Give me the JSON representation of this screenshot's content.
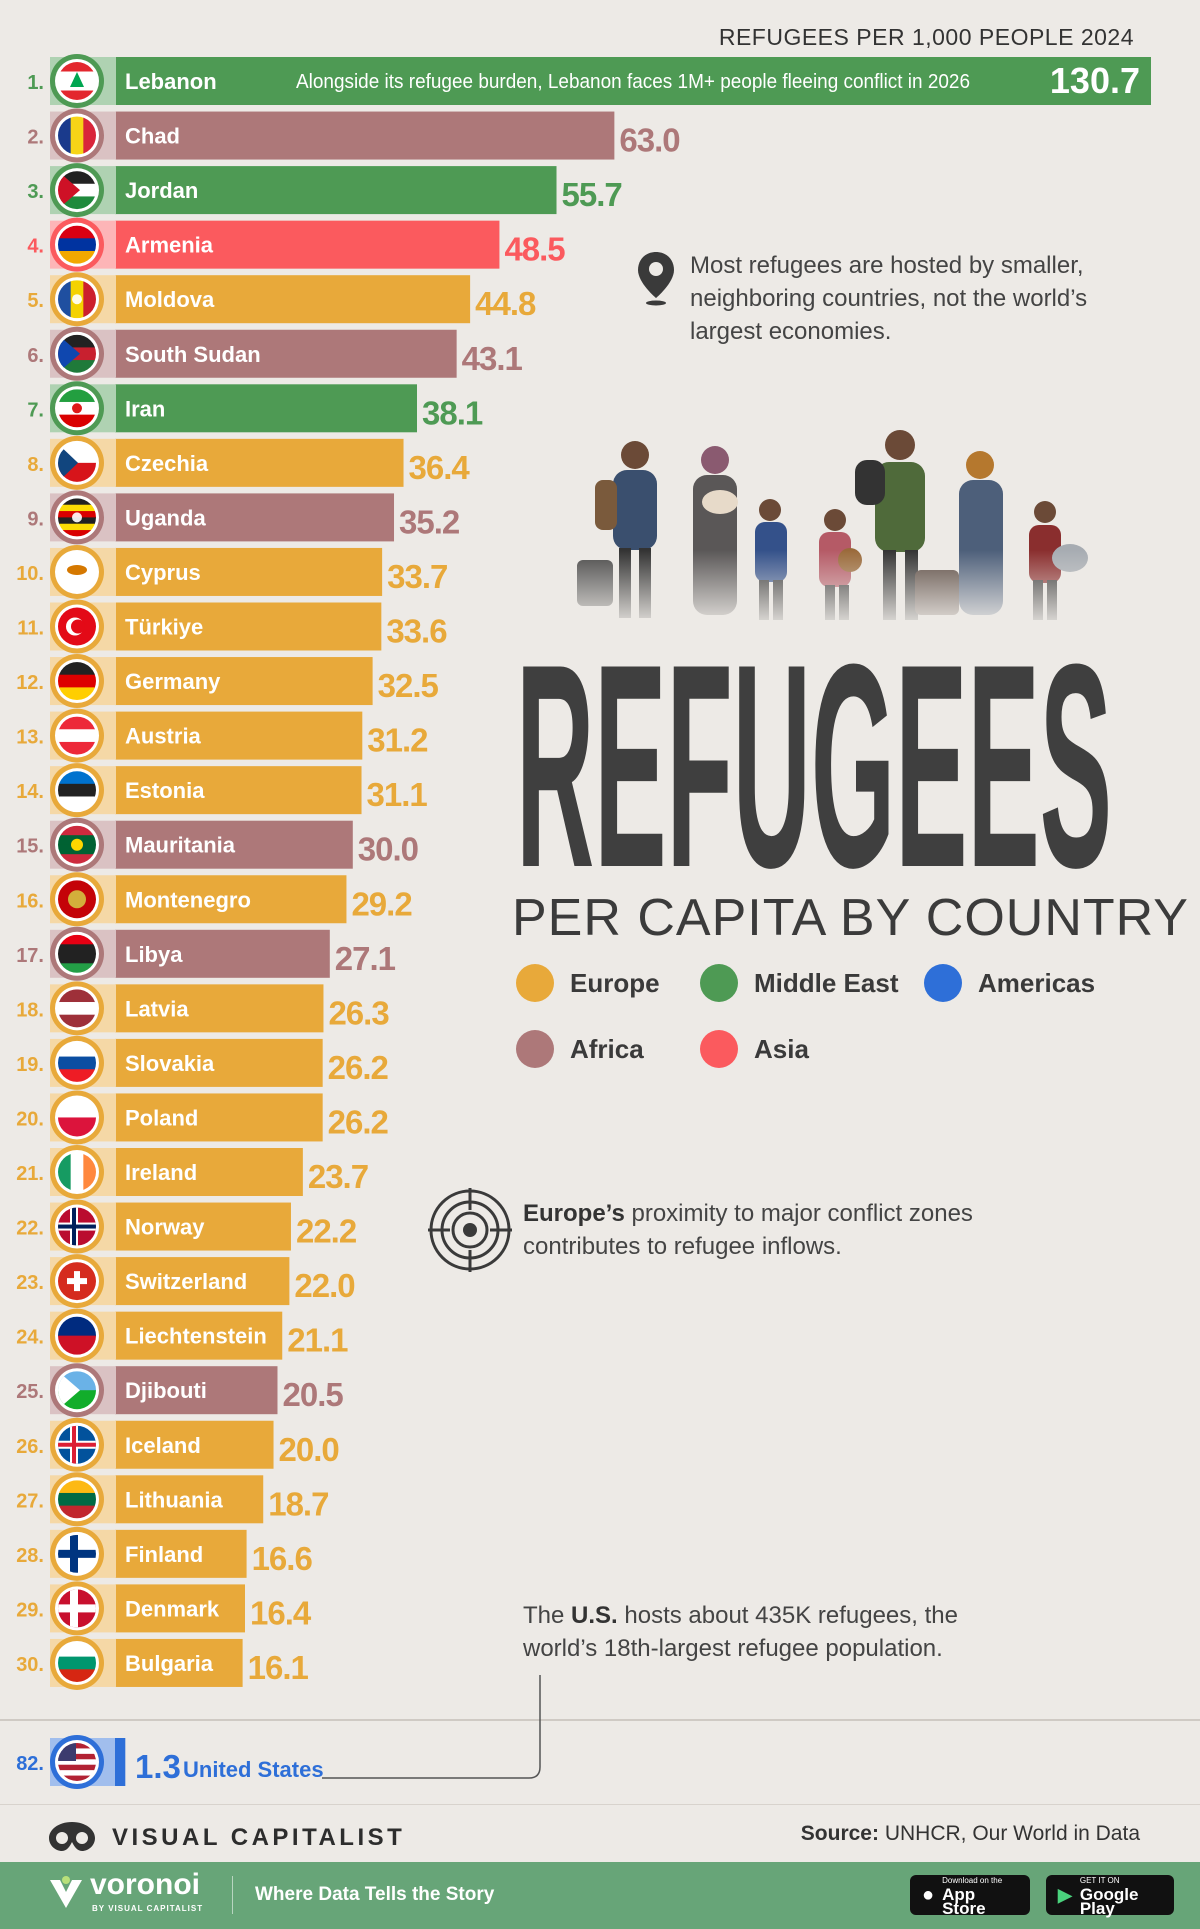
{
  "header_label": "REFUGEES PER 1,000 PEOPLE 2024",
  "colors": {
    "Europe": "#e8a93a",
    "Middle East": "#4e9a54",
    "Americas": "#2e6fd8",
    "Africa": "#ad7879",
    "Asia": "#fb5a5e"
  },
  "lebanon_annotation": "Alongside its refugee burden, Lebanon faces 1M+ people fleeing conflict in 2026",
  "title": "REFUGEES",
  "subtitle": "PER CAPITA BY COUNTRY",
  "legend": [
    {
      "label": "Europe",
      "color": "#e8a93a"
    },
    {
      "label": "Middle East",
      "color": "#4e9a54"
    },
    {
      "label": "Americas",
      "color": "#2e6fd8"
    },
    {
      "label": "Africa",
      "color": "#ad7879"
    },
    {
      "label": "Asia",
      "color": "#fb5a5e"
    }
  ],
  "note_hosted": "Most refugees are hosted by smaller, neighboring countries, not the world’s largest economies.",
  "note_europe_bold": "Europe’s",
  "note_europe_rest": " proximity to major conflict zones contributes to refugee inflows.",
  "note_us_pre": "The ",
  "note_us_bold": "U.S.",
  "note_us_rest": " hosts about 435K refugees, the world’s 18th-largest refugee population.",
  "footer": {
    "brand": "VISUAL CAPITALIST",
    "source_label": "Source:",
    "source_text": "UNHCR, Our World in Data",
    "voronoi": "voronoi",
    "voronoi_sub": "BY VISUAL CAPITALIST",
    "tagline": "Where Data Tells the Story",
    "app_store_small": "Download on the",
    "app_store": "App Store",
    "google_small": "GET IT ON",
    "google": "Google Play"
  },
  "chart_data": {
    "type": "bar",
    "orientation": "horizontal",
    "title": "REFUGEES PER 1,000 PEOPLE 2024",
    "rows": [
      {
        "rank": "1.",
        "country": "Lebanon",
        "value": 130.7,
        "region": "Middle East",
        "flag": "lebanon-flag-icon"
      },
      {
        "rank": "2.",
        "country": "Chad",
        "value": 63.0,
        "region": "Africa",
        "flag": "chad-flag-icon"
      },
      {
        "rank": "3.",
        "country": "Jordan",
        "value": 55.7,
        "region": "Middle East",
        "flag": "jordan-flag-icon"
      },
      {
        "rank": "4.",
        "country": "Armenia",
        "value": 48.5,
        "region": "Asia",
        "flag": "armenia-flag-icon"
      },
      {
        "rank": "5.",
        "country": "Moldova",
        "value": 44.8,
        "region": "Europe",
        "flag": "moldova-flag-icon"
      },
      {
        "rank": "6.",
        "country": "South Sudan",
        "value": 43.1,
        "region": "Africa",
        "flag": "south-sudan-flag-icon"
      },
      {
        "rank": "7.",
        "country": "Iran",
        "value": 38.1,
        "region": "Middle East",
        "flag": "iran-flag-icon"
      },
      {
        "rank": "8.",
        "country": "Czechia",
        "value": 36.4,
        "region": "Europe",
        "flag": "czechia-flag-icon"
      },
      {
        "rank": "9.",
        "country": "Uganda",
        "value": 35.2,
        "region": "Africa",
        "flag": "uganda-flag-icon"
      },
      {
        "rank": "10.",
        "country": "Cyprus",
        "value": 33.7,
        "region": "Europe",
        "flag": "cyprus-flag-icon"
      },
      {
        "rank": "11.",
        "country": "Türkiye",
        "value": 33.6,
        "region": "Europe",
        "flag": "turkiye-flag-icon"
      },
      {
        "rank": "12.",
        "country": "Germany",
        "value": 32.5,
        "region": "Europe",
        "flag": "germany-flag-icon"
      },
      {
        "rank": "13.",
        "country": "Austria",
        "value": 31.2,
        "region": "Europe",
        "flag": "austria-flag-icon"
      },
      {
        "rank": "14.",
        "country": "Estonia",
        "value": 31.1,
        "region": "Europe",
        "flag": "estonia-flag-icon"
      },
      {
        "rank": "15.",
        "country": "Mauritania",
        "value": 30.0,
        "region": "Africa",
        "flag": "mauritania-flag-icon"
      },
      {
        "rank": "16.",
        "country": "Montenegro",
        "value": 29.2,
        "region": "Europe",
        "flag": "montenegro-flag-icon"
      },
      {
        "rank": "17.",
        "country": "Libya",
        "value": 27.1,
        "region": "Africa",
        "flag": "libya-flag-icon"
      },
      {
        "rank": "18.",
        "country": "Latvia",
        "value": 26.3,
        "region": "Europe",
        "flag": "latvia-flag-icon"
      },
      {
        "rank": "19.",
        "country": "Slovakia",
        "value": 26.2,
        "region": "Europe",
        "flag": "slovakia-flag-icon"
      },
      {
        "rank": "20.",
        "country": "Poland",
        "value": 26.2,
        "region": "Europe",
        "flag": "poland-flag-icon"
      },
      {
        "rank": "21.",
        "country": "Ireland",
        "value": 23.7,
        "region": "Europe",
        "flag": "ireland-flag-icon"
      },
      {
        "rank": "22.",
        "country": "Norway",
        "value": 22.2,
        "region": "Europe",
        "flag": "norway-flag-icon"
      },
      {
        "rank": "23.",
        "country": "Switzerland",
        "value": 22.0,
        "region": "Europe",
        "flag": "switzerland-flag-icon"
      },
      {
        "rank": "24.",
        "country": "Liechtenstein",
        "value": 21.1,
        "region": "Europe",
        "flag": "liechtenstein-flag-icon"
      },
      {
        "rank": "25.",
        "country": "Djibouti",
        "value": 20.5,
        "region": "Africa",
        "flag": "djibouti-flag-icon"
      },
      {
        "rank": "26.",
        "country": "Iceland",
        "value": 20.0,
        "region": "Europe",
        "flag": "iceland-flag-icon"
      },
      {
        "rank": "27.",
        "country": "Lithuania",
        "value": 18.7,
        "region": "Europe",
        "flag": "lithuania-flag-icon"
      },
      {
        "rank": "28.",
        "country": "Finland",
        "value": 16.6,
        "region": "Europe",
        "flag": "finland-flag-icon"
      },
      {
        "rank": "29.",
        "country": "Denmark",
        "value": 16.4,
        "region": "Europe",
        "flag": "denmark-flag-icon"
      },
      {
        "rank": "30.",
        "country": "Bulgaria",
        "value": 16.1,
        "region": "Europe",
        "flag": "bulgaria-flag-icon"
      }
    ],
    "extra_row": {
      "rank": "82.",
      "country": "United States",
      "value": 1.3,
      "region": "Americas",
      "flag": "usa-flag-icon"
    },
    "value_format": "one decimal"
  }
}
